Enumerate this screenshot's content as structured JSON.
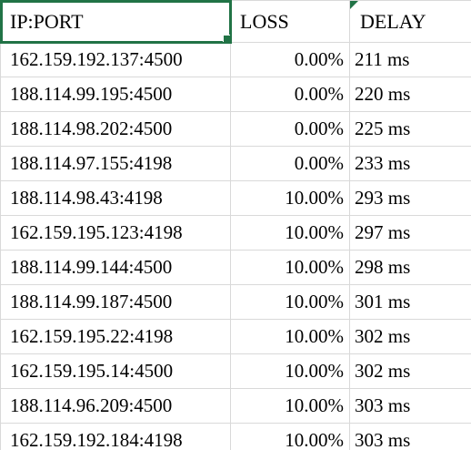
{
  "headers": {
    "ip": "IP:PORT",
    "loss": "LOSS",
    "delay": "DELAY"
  },
  "rows": [
    {
      "ip": "162.159.192.137:4500",
      "loss": "0.00%",
      "delay": "211 ms"
    },
    {
      "ip": "188.114.99.195:4500",
      "loss": "0.00%",
      "delay": "220 ms"
    },
    {
      "ip": "188.114.98.202:4500",
      "loss": "0.00%",
      "delay": "225 ms"
    },
    {
      "ip": "188.114.97.155:4198",
      "loss": "0.00%",
      "delay": "233 ms"
    },
    {
      "ip": "188.114.98.43:4198",
      "loss": "10.00%",
      "delay": "293 ms"
    },
    {
      "ip": "162.159.195.123:4198",
      "loss": "10.00%",
      "delay": "297 ms"
    },
    {
      "ip": "188.114.99.144:4500",
      "loss": "10.00%",
      "delay": "298 ms"
    },
    {
      "ip": "188.114.99.187:4500",
      "loss": "10.00%",
      "delay": "301 ms"
    },
    {
      "ip": "162.159.195.22:4198",
      "loss": "10.00%",
      "delay": "302 ms"
    },
    {
      "ip": "162.159.195.14:4500",
      "loss": "10.00%",
      "delay": "302 ms"
    },
    {
      "ip": "188.114.96.209:4500",
      "loss": "10.00%",
      "delay": "303 ms"
    },
    {
      "ip": "162.159.192.184:4198",
      "loss": "10.00%",
      "delay": "303 ms"
    }
  ],
  "colors": {
    "selection": "#217346",
    "gridline": "#d9d9d9"
  }
}
